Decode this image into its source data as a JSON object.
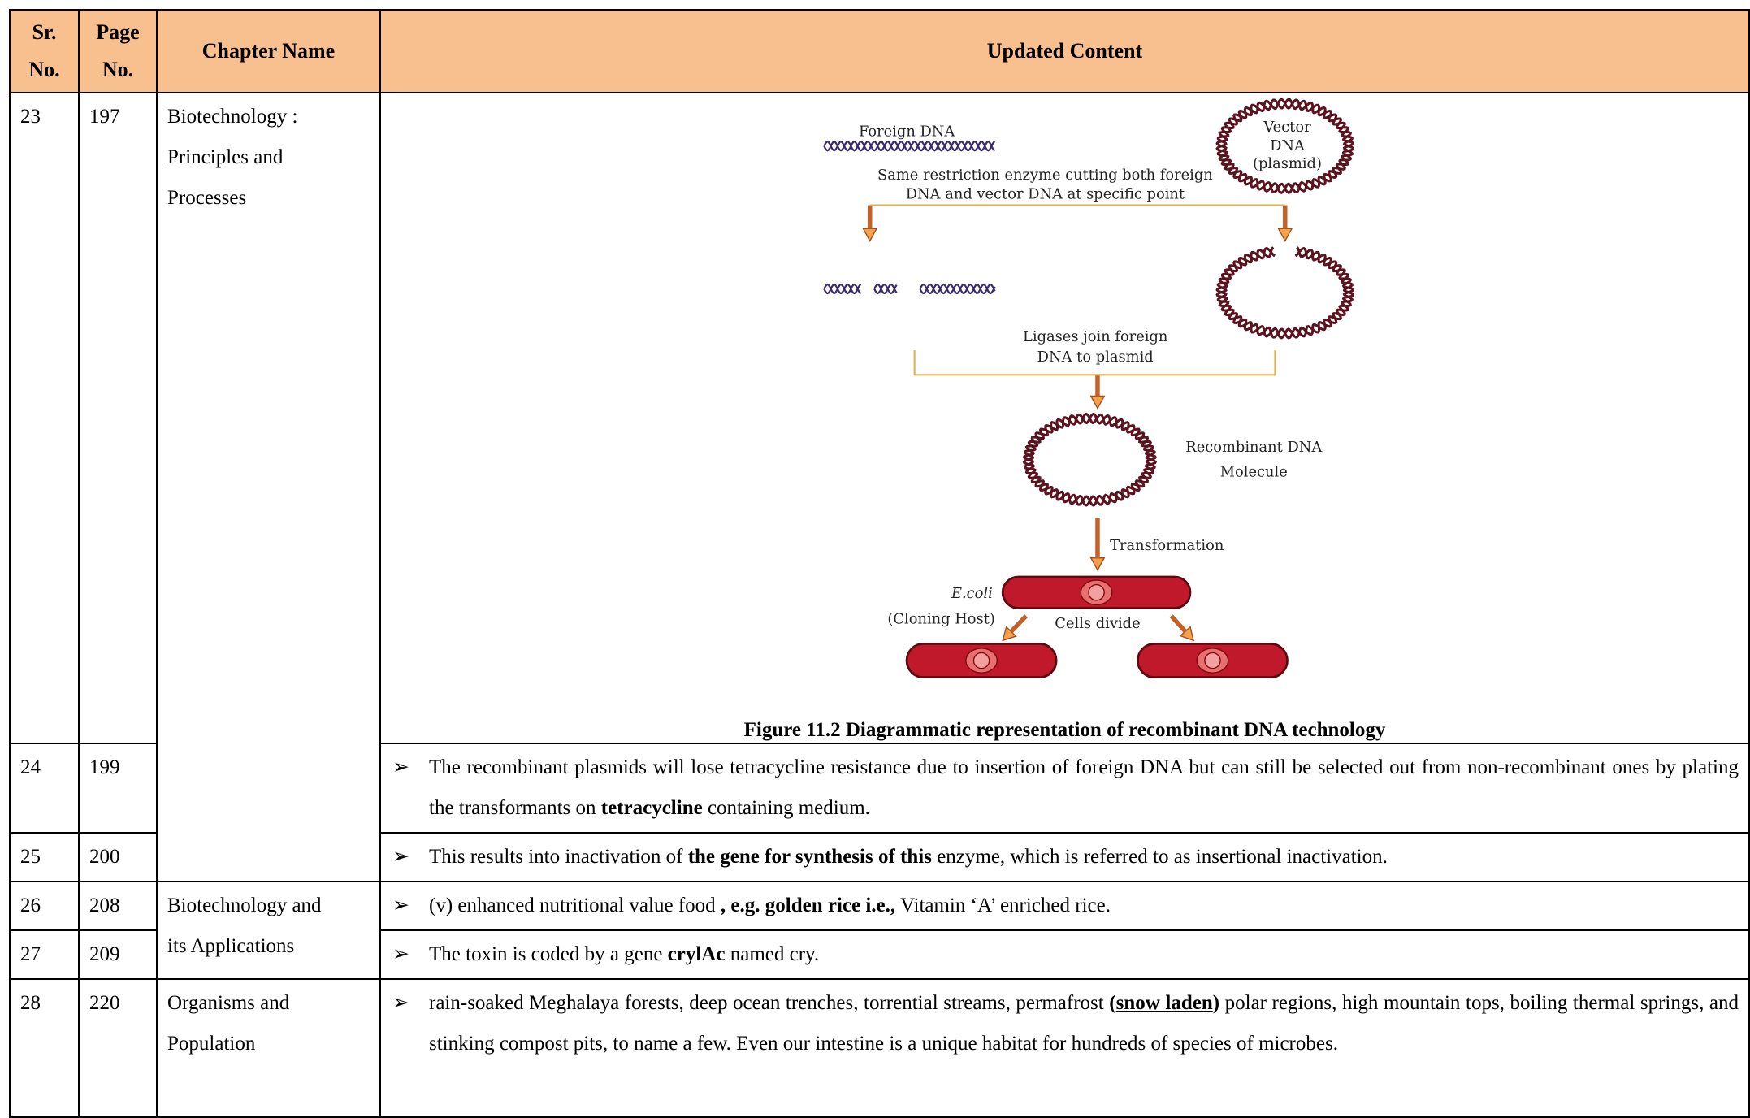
{
  "table": {
    "header": [
      "Sr. No.",
      "Page No.",
      "Chapter Name",
      "Updated Content"
    ],
    "rows": [
      {
        "sr": "23",
        "page": "197",
        "chapter": [
          "Biotechnology :",
          "Principles and",
          "Processes"
        ],
        "figure": {
          "labels": [
            "Foreign DNA",
            "Vector",
            "DNA",
            "(plasmid)",
            "Same restriction enzyme cutting both foreign",
            "DNA and vector DNA at specific point",
            "Ligases join foreign",
            "DNA to plasmid",
            "Recombinant DNA",
            "Molecule",
            "Transformation",
            "E.coli",
            "(Cloning Host)",
            "Cells divide"
          ],
          "caption": "Figure 11.2 Diagrammatic representation of recombinant DNA technology"
        }
      },
      {
        "sr": "24",
        "page": "199",
        "content": [
          {
            "text": "The recombinant plasmids will lose tetracycline resistance due to insertion of foreign DNA but can still be selected out from non-recombinant ones by plating the transformants on "
          },
          {
            "text": "tetracycline",
            "bold": true
          },
          {
            "text": " containing medium."
          }
        ]
      },
      {
        "sr": "25",
        "page": "200",
        "content": [
          {
            "text": "This results into inactivation of "
          },
          {
            "text": "the gene for synthesis of this",
            "bold": true
          },
          {
            "text": " enzyme, which is referred to as insertional inactivation."
          }
        ]
      },
      {
        "sr": "26",
        "page": "208",
        "chapter": [
          "Biotechnology and",
          "its Applications"
        ],
        "content": [
          {
            "text": "(v) enhanced nutritional value food "
          },
          {
            "text": ", e.g. golden rice i.e.,",
            "bold": true
          },
          {
            "text": " Vitamin ‘A’ enriched rice."
          }
        ]
      },
      {
        "sr": "27",
        "page": "209",
        "content": [
          {
            "text": "The toxin is coded by a gene "
          },
          {
            "text": "crylAc",
            "bold": true
          },
          {
            "text": " named cry."
          }
        ]
      },
      {
        "sr": "28",
        "page": "220",
        "chapter": [
          "Organisms and",
          "Population"
        ],
        "content": [
          {
            "text": "rain-soaked Meghalaya forests, deep ocean trenches, torrential streams, permafrost "
          },
          {
            "text": "(",
            "bold": true
          },
          {
            "text": "snow laden",
            "bold": true,
            "underline": true
          },
          {
            "text": ")",
            "bold": true
          },
          {
            "text": " polar regions, high mountain tops, boiling thermal springs, and stinking compost pits, to name a few. Even our intestine is a unique habitat for hundreds of species of microbes."
          }
        ]
      }
    ]
  }
}
